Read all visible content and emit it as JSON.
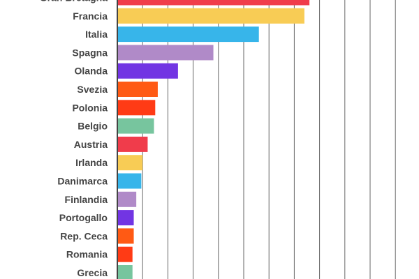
{
  "chart_data": {
    "type": "bar",
    "orientation": "horizontal",
    "title": "",
    "xlabel": "",
    "ylabel": "",
    "grid": true,
    "xlim": [
      0,
      12
    ],
    "categories": [
      "Gran Bretagna",
      "Francia",
      "Italia",
      "Spagna",
      "Olanda",
      "Svezia",
      "Polonia",
      "Belgio",
      "Austria",
      "Irlanda",
      "Danimarca",
      "Finlandia",
      "Portogallo",
      "Rep. Ceca",
      "Romania",
      "Grecia"
    ],
    "values": [
      7.6,
      7.4,
      5.6,
      3.8,
      2.4,
      1.6,
      1.5,
      1.45,
      1.2,
      1.0,
      0.95,
      0.75,
      0.65,
      0.65,
      0.6,
      0.6
    ],
    "colors": [
      "#f03c4b",
      "#f8cc55",
      "#37b5ea",
      "#b08ac8",
      "#7235e3",
      "#ff5a14",
      "#ff3b15",
      "#77c59e",
      "#f03c4b",
      "#f8cc55",
      "#37b5ea",
      "#b08ac8",
      "#7235e3",
      "#ff5a14",
      "#ff3b15",
      "#77c59e"
    ]
  }
}
